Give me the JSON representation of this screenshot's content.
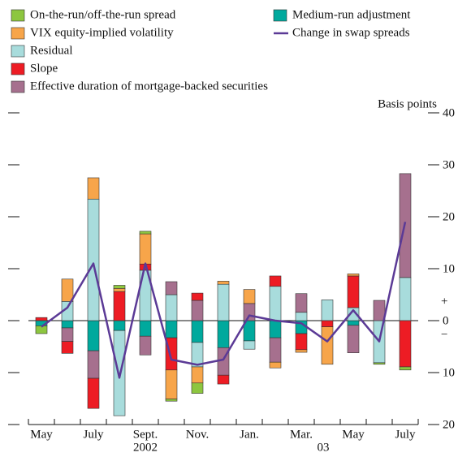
{
  "chart_data": {
    "type": "bar",
    "y_label": "Basis points",
    "annotations": [
      "2002",
      "03",
      "+",
      "−"
    ],
    "categories": [
      "May",
      null,
      "July",
      null,
      "Sept.",
      null,
      "Nov.",
      null,
      "Jan.",
      null,
      "Mar.",
      null,
      "May",
      null,
      "July"
    ],
    "series": [
      {
        "name": "On-the-run/off-the-run spread",
        "color": "#8dc63f",
        "values": [
          -1.5,
          0,
          0,
          0.6,
          0.5,
          -0.4,
          -2,
          0,
          0,
          0,
          0,
          0,
          0,
          -0.3,
          -0.6
        ]
      },
      {
        "name": "VIX equity-implied volatility",
        "color": "#f7a54a",
        "values": [
          0,
          4.3,
          4.1,
          0.6,
          5.8,
          -5.6,
          -3.1,
          0.6,
          2.7,
          -1.1,
          -0.5,
          -7.2,
          0.4,
          0,
          0
        ]
      },
      {
        "name": "Residual",
        "color": "#a8dcdc",
        "values": [
          0,
          3.7,
          23.4,
          -16.4,
          9.7,
          5,
          -4.7,
          7,
          -1.6,
          6.6,
          1.6,
          4,
          2.5,
          -8.1,
          8.3
        ]
      },
      {
        "name": "Slope",
        "color": "#ed1c24",
        "values": [
          0.6,
          -2.3,
          -5.8,
          5.6,
          1.2,
          -6.2,
          1.4,
          -1.7,
          0,
          2,
          -3.1,
          -1.2,
          6.1,
          0,
          -8.9
        ]
      },
      {
        "name": "Effective duration of mortgage-backed securities",
        "color": "#a6708e",
        "values": [
          0,
          -2.6,
          -5.3,
          0,
          -3.6,
          2.5,
          3.9,
          -5.3,
          3.3,
          -4.7,
          3.6,
          0,
          -5.3,
          3.9,
          20
        ]
      },
      {
        "name": "Medium-run adjustment",
        "color": "#00a99d",
        "values": [
          -1,
          -1.4,
          -5.8,
          -1.9,
          -3,
          -3.3,
          -4.2,
          -5.2,
          -3.9,
          -3.3,
          -2.5,
          0,
          -0.9,
          0,
          0
        ]
      },
      {
        "name": "Change in swap spreads",
        "type": "line",
        "color": "#5b3a96",
        "values": [
          -1.2,
          2.5,
          11,
          -11,
          11,
          -7.5,
          -8.5,
          -7.5,
          1,
          0,
          -0.5,
          -4,
          2,
          -4,
          19
        ]
      }
    ],
    "ylim": [
      -20,
      40
    ],
    "yticks": [
      {
        "value": -20,
        "label": "20"
      },
      {
        "value": -10,
        "label": "10"
      },
      0,
      10,
      20,
      30,
      40
    ]
  }
}
